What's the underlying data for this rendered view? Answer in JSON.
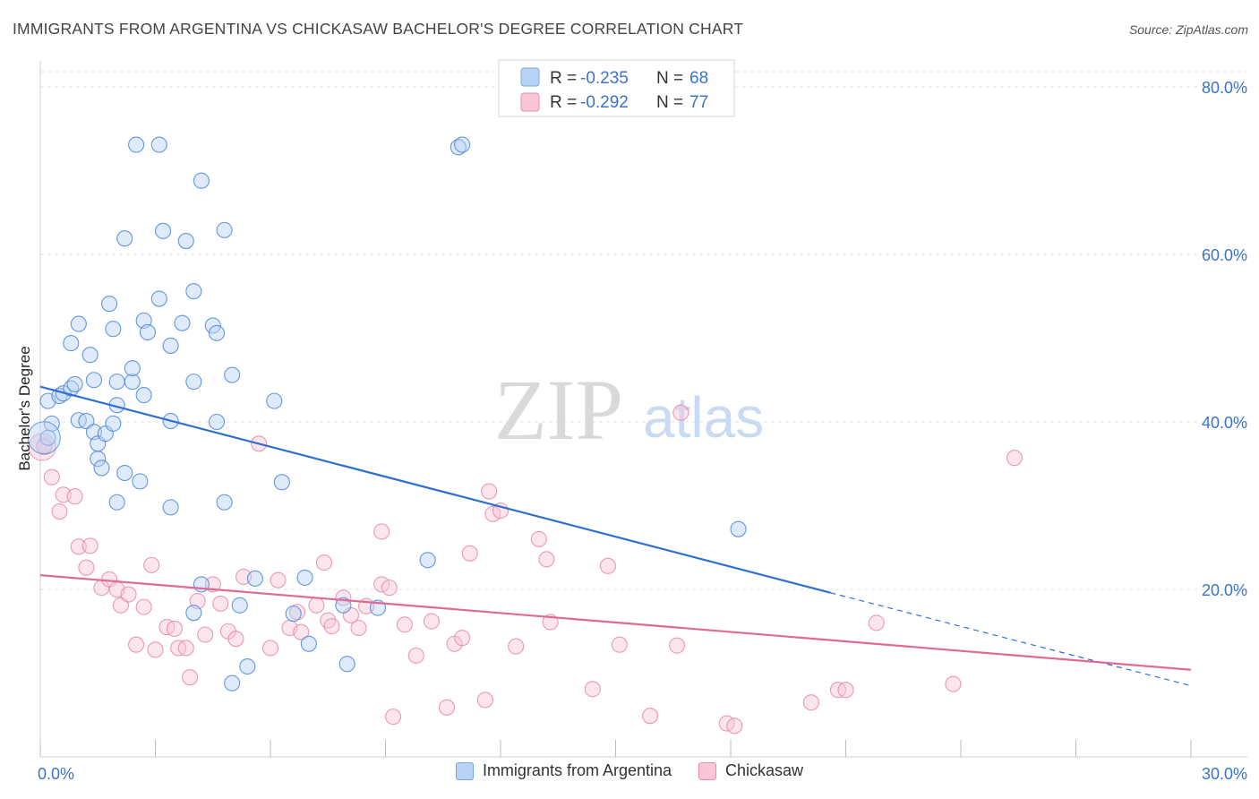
{
  "title": "IMMIGRANTS FROM ARGENTINA VS CHICKASAW BACHELOR'S DEGREE CORRELATION CHART",
  "source": "Source: ZipAtlas.com",
  "watermark": {
    "zip": "ZIP",
    "atlas": "atlas"
  },
  "colors": {
    "blue": "#4a86d8",
    "blue_fill": "#b8d3f5",
    "blue_line": "#2f6fd0",
    "pink": "#e58aa8",
    "pink_fill": "#f8c6d6",
    "pink_line": "#e06a93",
    "tick": "#3b73c7"
  },
  "legend": {
    "entries": [
      {
        "r_label": "R =",
        "r_value": "-0.235",
        "n_label": "N =",
        "n_value": "68"
      },
      {
        "r_label": "R =",
        "r_value": "-0.292",
        "n_label": "N =",
        "n_value": "77"
      }
    ]
  },
  "chart_data": {
    "type": "scatter",
    "title": "IMMIGRANTS FROM ARGENTINA VS CHICKASAW BACHELOR'S DEGREE CORRELATION CHART",
    "xlabel": "",
    "ylabel": "Bachelor's Degree",
    "xlim": [
      0,
      30
    ],
    "ylim": [
      0,
      80
    ],
    "x_tick_labels": [
      "0.0%",
      "30.0%"
    ],
    "y_ticks": [
      20,
      40,
      60,
      80
    ],
    "y_tick_labels": [
      "20.0%",
      "40.0%",
      "60.0%",
      "80.0%"
    ],
    "grid": true,
    "series": [
      {
        "name": "Immigrants from Argentina",
        "color": "blue",
        "R": -0.235,
        "N": 68,
        "trend": {
          "x0": 0,
          "y0": 44.2,
          "x1": 20.6,
          "y1": 19.6,
          "x_dash_end": 30,
          "y_dash_end": 8.5
        },
        "points": [
          [
            0.2,
            42.5
          ],
          [
            0.3,
            39.8
          ],
          [
            0.5,
            43.1
          ],
          [
            0.6,
            43.4
          ],
          [
            0.8,
            44
          ],
          [
            0.9,
            44.5
          ],
          [
            1.4,
            45
          ],
          [
            0.8,
            49.4
          ],
          [
            1.0,
            51.7
          ],
          [
            1.3,
            48
          ],
          [
            1.8,
            54.1
          ],
          [
            1.9,
            51.1
          ],
          [
            2.2,
            61.9
          ],
          [
            2.5,
            73.1
          ],
          [
            2.7,
            52.1
          ],
          [
            2.8,
            50.7
          ],
          [
            3.1,
            54.7
          ],
          [
            3.2,
            62.8
          ],
          [
            3.4,
            49.1
          ],
          [
            3.7,
            51.8
          ],
          [
            3.8,
            61.6
          ],
          [
            4.0,
            55.6
          ],
          [
            4.2,
            68.8
          ],
          [
            4.5,
            51.5
          ],
          [
            4.6,
            50.6
          ],
          [
            4.8,
            62.9
          ],
          [
            3.1,
            73.1
          ],
          [
            1.0,
            40.2
          ],
          [
            1.2,
            40.1
          ],
          [
            1.4,
            38.8
          ],
          [
            1.5,
            37.4
          ],
          [
            1.7,
            38.6
          ],
          [
            1.5,
            35.6
          ],
          [
            1.6,
            34.5
          ],
          [
            2.2,
            33.9
          ],
          [
            1.9,
            39.8
          ],
          [
            2.0,
            42
          ],
          [
            2.0,
            44.8
          ],
          [
            2.4,
            44.8
          ],
          [
            2.4,
            46.4
          ],
          [
            2.7,
            43.2
          ],
          [
            2.6,
            32.9
          ],
          [
            2.0,
            30.4
          ],
          [
            3.4,
            29.8
          ],
          [
            3.4,
            40.1
          ],
          [
            4.0,
            44.8
          ],
          [
            4.6,
            40.0
          ],
          [
            4.8,
            30.4
          ],
          [
            5.0,
            45.6
          ],
          [
            6.1,
            42.5
          ],
          [
            6.3,
            32.8
          ],
          [
            4.2,
            20.6
          ],
          [
            4.0,
            17.2
          ],
          [
            5.2,
            18.1
          ],
          [
            5.6,
            21.3
          ],
          [
            5.4,
            10.8
          ],
          [
            5.0,
            8.8
          ],
          [
            6.6,
            17.1
          ],
          [
            6.9,
            21.4
          ],
          [
            7.0,
            13.5
          ],
          [
            7.9,
            18.1
          ],
          [
            8.0,
            11.1
          ],
          [
            8.8,
            17.8
          ],
          [
            10.1,
            23.5
          ],
          [
            10.9,
            72.8
          ],
          [
            11.0,
            73.1
          ],
          [
            18.2,
            27.2
          ],
          [
            0.2,
            38.1
          ]
        ]
      },
      {
        "name": "Chickasaw",
        "color": "pink",
        "R": -0.292,
        "N": 77,
        "trend": {
          "x0": 0,
          "y0": 21.7,
          "x1": 30,
          "y1": 10.4
        },
        "points": [
          [
            0.1,
            37.2
          ],
          [
            0.3,
            33.4
          ],
          [
            0.5,
            29.3
          ],
          [
            0.6,
            31.3
          ],
          [
            0.9,
            31.1
          ],
          [
            1.0,
            25.1
          ],
          [
            1.3,
            25.2
          ],
          [
            1.2,
            22.6
          ],
          [
            1.6,
            20.2
          ],
          [
            1.8,
            21.2
          ],
          [
            2.0,
            20.0
          ],
          [
            2.1,
            18.1
          ],
          [
            2.3,
            19.4
          ],
          [
            2.5,
            13.4
          ],
          [
            2.7,
            17.9
          ],
          [
            2.9,
            22.9
          ],
          [
            3.0,
            12.8
          ],
          [
            3.3,
            15.5
          ],
          [
            3.5,
            15.3
          ],
          [
            3.6,
            13.0
          ],
          [
            3.8,
            13.0
          ],
          [
            3.9,
            9.5
          ],
          [
            4.1,
            18.6
          ],
          [
            4.3,
            14.6
          ],
          [
            4.5,
            20.6
          ],
          [
            4.7,
            18.3
          ],
          [
            4.9,
            15.0
          ],
          [
            5.1,
            14.1
          ],
          [
            5.3,
            21.5
          ],
          [
            5.7,
            37.4
          ],
          [
            6.0,
            13.0
          ],
          [
            6.2,
            21.1
          ],
          [
            6.5,
            15.4
          ],
          [
            6.7,
            17.3
          ],
          [
            6.8,
            14.9
          ],
          [
            7.2,
            18.1
          ],
          [
            7.4,
            23.2
          ],
          [
            7.5,
            16.3
          ],
          [
            7.6,
            15.6
          ],
          [
            7.9,
            19.0
          ],
          [
            8.1,
            16.9
          ],
          [
            8.3,
            15.4
          ],
          [
            8.5,
            18.0
          ],
          [
            8.9,
            20.6
          ],
          [
            9.1,
            20.2
          ],
          [
            8.9,
            26.9
          ],
          [
            9.2,
            4.8
          ],
          [
            9.5,
            15.8
          ],
          [
            9.8,
            12.1
          ],
          [
            10.2,
            16.2
          ],
          [
            10.6,
            5.9
          ],
          [
            10.8,
            13.5
          ],
          [
            11.0,
            14.2
          ],
          [
            11.2,
            24.3
          ],
          [
            11.6,
            6.8
          ],
          [
            11.7,
            31.7
          ],
          [
            11.8,
            29.0
          ],
          [
            12.0,
            29.4
          ],
          [
            12.4,
            13.2
          ],
          [
            13.0,
            26.0
          ],
          [
            13.2,
            23.6
          ],
          [
            13.3,
            16.1
          ],
          [
            14.4,
            8.1
          ],
          [
            14.8,
            22.8
          ],
          [
            15.1,
            13.4
          ],
          [
            15.9,
            4.9
          ],
          [
            16.6,
            13.3
          ],
          [
            16.7,
            41.1
          ],
          [
            17.9,
            4.0
          ],
          [
            18.1,
            3.7
          ],
          [
            20.1,
            6.5
          ],
          [
            20.8,
            8.0
          ],
          [
            21.0,
            8.0
          ],
          [
            21.8,
            16.0
          ],
          [
            23.8,
            8.7
          ],
          [
            25.4,
            35.7
          ],
          [
            0.1,
            37.0
          ]
        ]
      }
    ]
  }
}
